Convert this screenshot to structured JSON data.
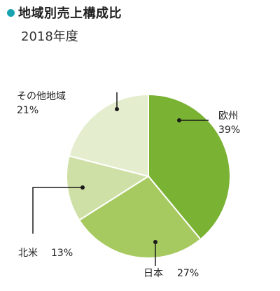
{
  "chart_data": {
    "type": "pie",
    "title": "地域別売上構成比",
    "subtitle": "2018年度",
    "slices": [
      {
        "label": "欧州",
        "value_text": "39%",
        "value": 39,
        "color": "#7ab234"
      },
      {
        "label": "日本",
        "value_text": "27%",
        "value": 27,
        "color": "#a6c960"
      },
      {
        "label": "北米",
        "value_text": "13%",
        "value": 13,
        "color": "#cfe0a6"
      },
      {
        "label": "その他地域",
        "value_text": "21%",
        "value": 21,
        "color": "#e4edcd"
      }
    ]
  },
  "colors": {
    "title_bullet": "#19a3b0",
    "leader_line": "#1a1a1a"
  }
}
